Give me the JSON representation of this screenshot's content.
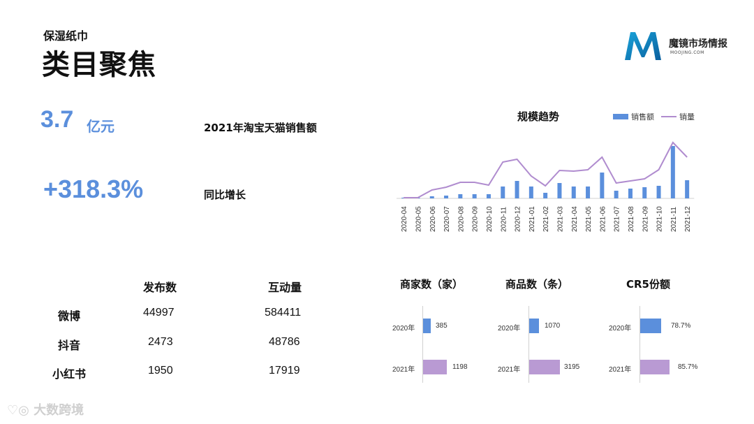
{
  "header": {
    "subtitle": "保湿纸巾",
    "title": "类目聚焦",
    "logo_name": "魔镜市场情报",
    "logo_url": "MOOJING.COM"
  },
  "kpis": {
    "sales_value": "3.7",
    "sales_unit": "亿元",
    "sales_label": "2021年淘宝天猫销售额",
    "growth_value": "+318.3%",
    "growth_label": "同比增长"
  },
  "trend": {
    "title": "规模趋势",
    "legend_bar": "销售额",
    "legend_line": "销量"
  },
  "chart_data": [
    {
      "type": "bar",
      "title": "规模趋势",
      "categories": [
        "2020-04",
        "2020-05",
        "2020-06",
        "2020-07",
        "2020-08",
        "2020-09",
        "2020-10",
        "2020-11",
        "2020-12",
        "2021-01",
        "2021-02",
        "2021-03",
        "2021-04",
        "2021-05",
        "2021-06",
        "2021-07",
        "2021-08",
        "2021-09",
        "2021-10",
        "2021-11",
        "2021-12"
      ],
      "series": [
        {
          "name": "销售额",
          "kind": "bar",
          "color": "#5b8fdc",
          "values": [
            1,
            1,
            3,
            4,
            6,
            6,
            6,
            17,
            25,
            17,
            8,
            22,
            17,
            17,
            37,
            11,
            14,
            16,
            18,
            75,
            26
          ]
        },
        {
          "name": "销量",
          "kind": "line",
          "color": "#b08ccf",
          "values": [
            1,
            1,
            12,
            16,
            23,
            23,
            19,
            52,
            56,
            32,
            18,
            40,
            39,
            41,
            59,
            22,
            25,
            28,
            41,
            80,
            59
          ]
        }
      ],
      "ylim": [
        0,
        84
      ]
    },
    {
      "type": "bar",
      "title": "商家数（家）",
      "categories": [
        "2020年",
        "2021年"
      ],
      "values": [
        385,
        1198
      ],
      "labels": [
        "385",
        "1198"
      ]
    },
    {
      "type": "bar",
      "title": "商品数（条）",
      "categories": [
        "2020年",
        "2021年"
      ],
      "values": [
        1070,
        3195
      ],
      "labels": [
        "1070",
        "3195"
      ]
    },
    {
      "type": "bar",
      "title": "CR5份额",
      "categories": [
        "2020年",
        "2021年"
      ],
      "values": [
        78.7,
        85.7
      ],
      "labels": [
        "78.7%",
        "85.7%"
      ]
    }
  ],
  "social": {
    "headers": [
      "发布数",
      "互动量"
    ],
    "rows": [
      {
        "platform": "微博",
        "posts": "44997",
        "engagement": "584411"
      },
      {
        "platform": "抖音",
        "posts": "2473",
        "engagement": "48786"
      },
      {
        "platform": "小红书",
        "posts": "1950",
        "engagement": "17919"
      }
    ]
  },
  "mini": {
    "merchants": {
      "title": "商家数（家）",
      "y2020": "2020年",
      "y2021": "2021年",
      "v2020": "385",
      "v2021": "1198"
    },
    "products": {
      "title": "商品数（条）",
      "y2020": "2020年",
      "y2021": "2021年",
      "v2020": "1070",
      "v2021": "3195"
    },
    "cr5": {
      "title": "CR5份额",
      "y2020": "2020年",
      "y2021": "2021年",
      "v2020": "78.7%",
      "v2021": "85.7%"
    }
  },
  "watermark": "大数跨境",
  "colors": {
    "accent": "#5b8fdc",
    "line": "#b08ccf",
    "bar2021": "#b99ad3"
  }
}
